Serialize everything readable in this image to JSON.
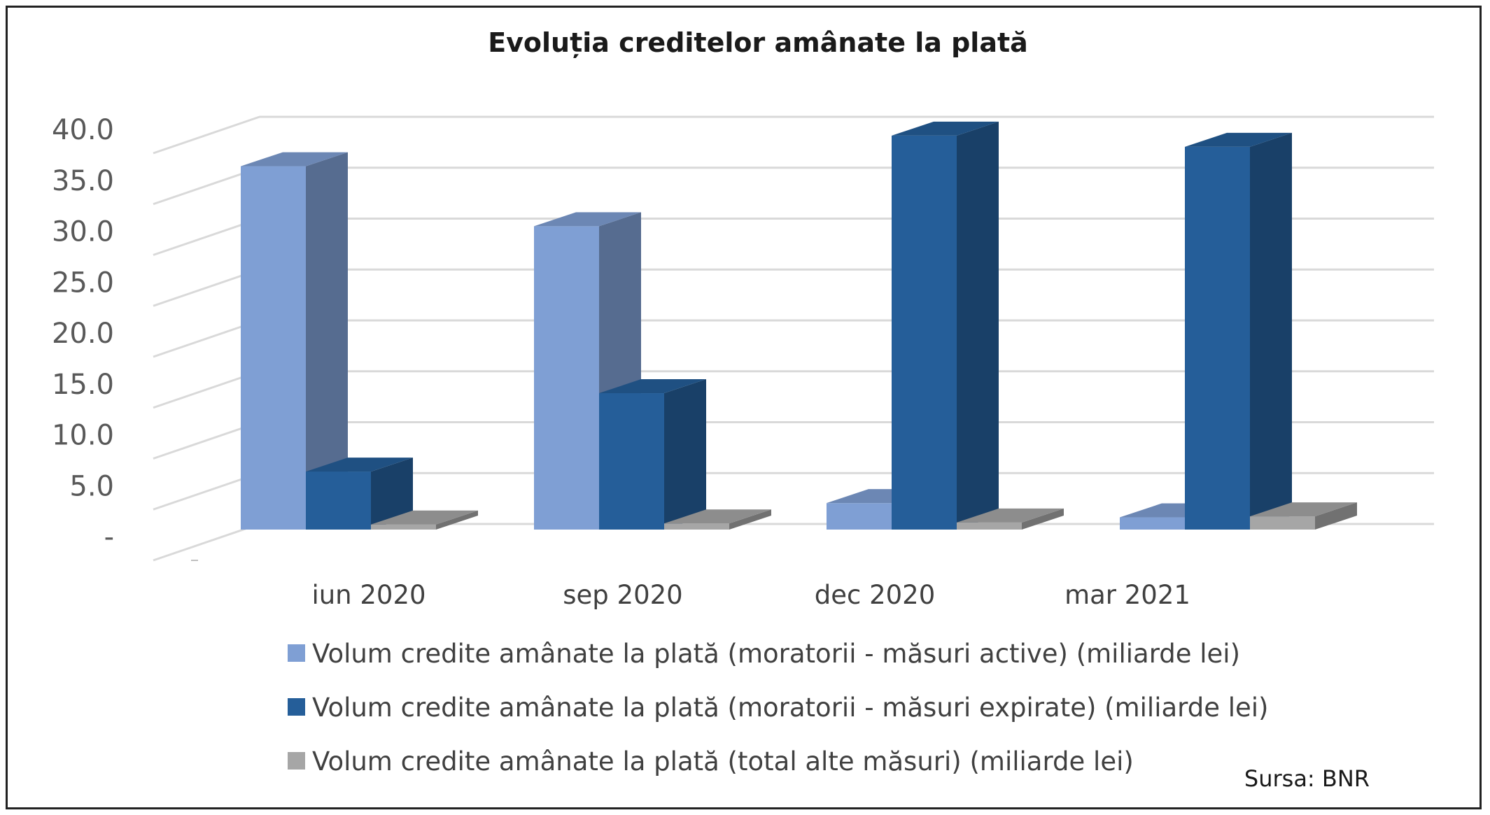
{
  "chart_data": {
    "type": "bar",
    "title": "Evoluția creditelor amânate la plată",
    "categories": [
      "iun 2020",
      "sep 2020",
      "dec 2020",
      "mar 2021"
    ],
    "series": [
      {
        "name": "Volum credite amânate la plată (moratorii - măsuri active) (miliarde lei)",
        "values": [
          35.7,
          29.8,
          2.6,
          1.2
        ],
        "color": "#7f9fd4"
      },
      {
        "name": "Volum credite amânate la plată (moratorii - măsuri expirate) (miliarde lei)",
        "values": [
          5.7,
          13.4,
          38.7,
          37.6
        ],
        "color": "#255e99"
      },
      {
        "name": "Volum credite amânate la plată (total alte măsuri) (miliarde lei)",
        "values": [
          0.5,
          0.6,
          0.7,
          1.3
        ],
        "color": "#a6a6a6"
      }
    ],
    "ytick_labels": [
      "-",
      "5.0",
      "10.0",
      "15.0",
      "20.0",
      "25.0",
      "30.0",
      "35.0",
      "40.0"
    ],
    "ylim": [
      0,
      40
    ],
    "ytick_step": 5,
    "grid": true,
    "legend_position": "bottom",
    "projection": "3d-clustered-column",
    "source": "Sursa: BNR"
  }
}
